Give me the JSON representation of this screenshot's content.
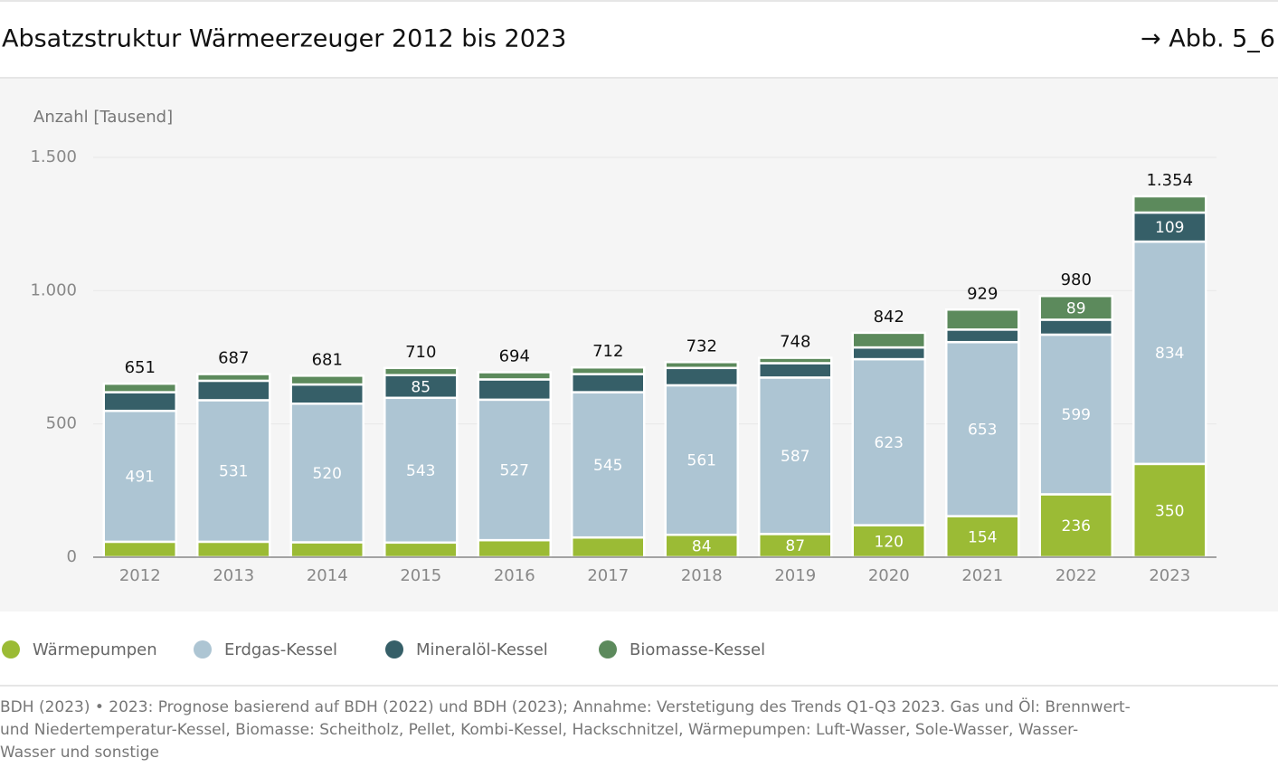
{
  "header": {
    "title": "Absatzstruktur Wärmeerzeuger 2012 bis 2023",
    "reference": "→ Abb. 5_6"
  },
  "chart_data": {
    "type": "stacked-bar",
    "y_label": "Anzahl [Tausend]",
    "categories": [
      "2012",
      "2013",
      "2014",
      "2015",
      "2016",
      "2017",
      "2018",
      "2019",
      "2020",
      "2021",
      "2022",
      "2023"
    ],
    "series": [
      {
        "name": "Wärmepumpen",
        "color": "#9bbb35",
        "values": [
          58,
          58,
          56,
          55,
          64,
          74,
          84,
          87,
          120,
          154,
          236,
          350
        ]
      },
      {
        "name": "Erdgas-Kessel",
        "color": "#adc5d3",
        "values": [
          491,
          531,
          520,
          543,
          527,
          545,
          561,
          587,
          623,
          653,
          599,
          834
        ]
      },
      {
        "name": "Mineralöl-Kessel",
        "color": "#365f68",
        "values": [
          70,
          73,
          72,
          85,
          76,
          68,
          65,
          54,
          44,
          47,
          56,
          109
        ]
      },
      {
        "name": "Biomasse-Kessel",
        "color": "#5c8a5c",
        "values": [
          32,
          25,
          33,
          27,
          27,
          25,
          22,
          20,
          55,
          75,
          89,
          61
        ]
      }
    ],
    "totals": {
      "values": [
        651,
        687,
        681,
        710,
        694,
        712,
        732,
        748,
        842,
        929,
        980,
        1354
      ],
      "value_labels": [
        "651",
        "687",
        "681",
        "710",
        "694",
        "712",
        "732",
        "748",
        "842",
        "929",
        "980",
        "1.354"
      ]
    },
    "ylim": [
      0,
      1500
    ],
    "yticks": [
      0,
      500,
      {
        "value": 1000,
        "label": "1.000"
      },
      {
        "value": 1500,
        "label": "1.500"
      }
    ],
    "grid": true,
    "legend": "bottom-left"
  },
  "footer": [
    "BDH (2023) • 2023: Prognose basierend auf BDH (2022) und BDH (2023); Annahme: Verstetigung des Trends Q1-Q3 2023. Gas und Öl: Brennwert-",
    "und Niedertemperatur-Kessel, Biomasse: Scheitholz, Pellet, Kombi-Kessel, Hackschnitzel, Wärmepumpen: Luft-Wasser, Sole-Wasser, Wasser-",
    "Wasser und sonstige"
  ]
}
